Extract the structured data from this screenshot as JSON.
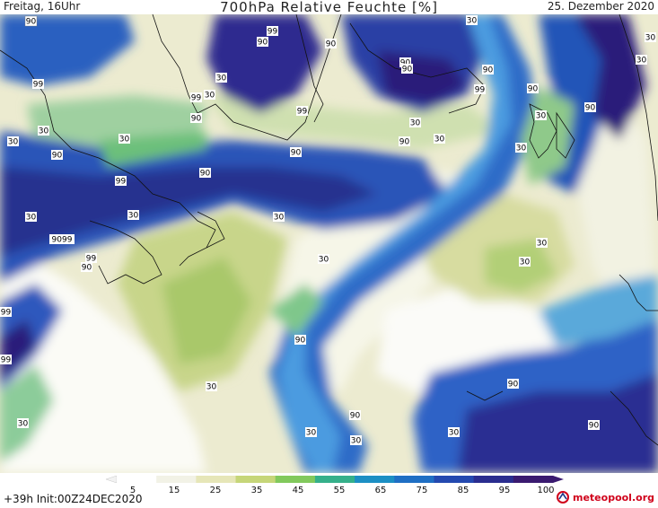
{
  "header": {
    "left": "Freitag, 16Uhr",
    "title": "700hPa Relative Feuchte [%]",
    "right": "25. Dezember 2020"
  },
  "legend": {
    "ticks": [
      "5",
      "15",
      "25",
      "35",
      "45",
      "55",
      "65",
      "75",
      "85",
      "95",
      "100"
    ],
    "colors": [
      "#ffffff",
      "#f2f2e6",
      "#e6e6b8",
      "#c6d679",
      "#82c95c",
      "#35b08a",
      "#1c8fc4",
      "#1f6fc4",
      "#2449b0",
      "#2a2d8f",
      "#3a1a70"
    ]
  },
  "footer": {
    "run_info": "+39h Init:00Z24DEC2020",
    "brand": "meteopool.org"
  },
  "map_labels": [
    "90",
    "99",
    "90",
    "99",
    "90",
    "90",
    "90",
    "99",
    "30",
    "30",
    "99",
    "30",
    "30",
    "99",
    "90",
    "99",
    "30",
    "30",
    "90",
    "30",
    "90",
    "90",
    "90",
    "90",
    "30",
    "90",
    "30",
    "99",
    "30",
    "30",
    "30",
    "30",
    "30",
    "9099",
    "99",
    "90",
    "30",
    "99",
    "30",
    "30",
    "90",
    "30",
    "90",
    "90",
    "30",
    "30",
    "30",
    "30",
    "90",
    "90",
    "90",
    "30",
    "30"
  ]
}
